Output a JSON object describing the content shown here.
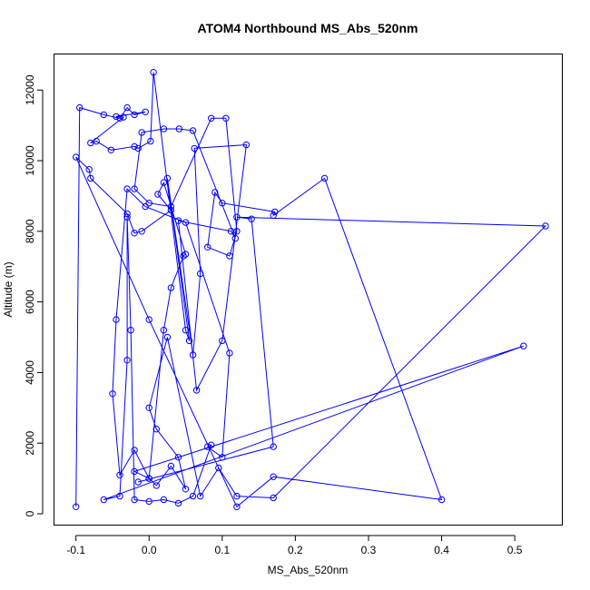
{
  "chart_data": {
    "type": "line",
    "title": "ATOM4 Northbound MS_Abs_520nm",
    "xlabel": "MS_Abs_520nm",
    "ylabel": "Altitude (m)",
    "xlim": [
      -0.13,
      0.565
    ],
    "ylim": [
      -320,
      13020
    ],
    "xticks": [
      -0.1,
      0.0,
      0.1,
      0.2,
      0.3,
      0.4,
      0.5
    ],
    "xtick_labels": [
      "-0.1",
      "0.0",
      "0.1",
      "0.2",
      "0.3",
      "0.4",
      "0.5"
    ],
    "yticks": [
      0,
      2000,
      4000,
      6000,
      8000,
      10000,
      12000
    ],
    "ytick_labels": [
      "0",
      "2000",
      "4000",
      "6000",
      "8000",
      "10000",
      "12000"
    ],
    "grid": false,
    "series": [
      {
        "color": "#0000ff",
        "marker": "open-circle",
        "points": [
          [
            -0.1,
            200
          ],
          [
            -0.095,
            11500
          ],
          [
            -0.062,
            11300
          ],
          [
            -0.04,
            11200
          ],
          [
            -0.03,
            11500
          ],
          [
            -0.02,
            11300
          ],
          [
            -0.005,
            11380
          ],
          [
            -0.045,
            11250
          ],
          [
            -0.035,
            11230
          ],
          [
            -0.08,
            10500
          ],
          [
            -0.072,
            10550
          ],
          [
            -0.052,
            10300
          ],
          [
            -0.02,
            10400
          ],
          [
            -0.015,
            10350
          ],
          [
            0.002,
            10550
          ],
          [
            0.006,
            12500
          ],
          [
            0.05,
            5200
          ],
          [
            0.055,
            4900
          ],
          [
            0.025,
            9500
          ],
          [
            0.06,
            4500
          ],
          [
            0.07,
            6800
          ],
          [
            0.062,
            10350
          ],
          [
            0.133,
            10450
          ],
          [
            0.1,
            4900
          ],
          [
            0.065,
            3500
          ],
          [
            0.04,
            8300
          ],
          [
            0.112,
            8000
          ],
          [
            0.118,
            7800
          ],
          [
            0.06,
            10850
          ],
          [
            0.041,
            10900
          ],
          [
            0.02,
            10900
          ],
          [
            -0.01,
            10800
          ],
          [
            -0.02,
            9200
          ],
          [
            0.0,
            8800
          ],
          [
            0.03,
            8700
          ],
          [
            0.085,
            11200
          ],
          [
            0.105,
            11200
          ],
          [
            0.12,
            8000
          ],
          [
            0.11,
            7300
          ],
          [
            0.08,
            7550
          ],
          [
            0.09,
            9100
          ],
          [
            0.1,
            8800
          ],
          [
            0.172,
            8550
          ],
          [
            0.17,
            8450
          ],
          [
            0.24,
            9500
          ],
          [
            0.4,
            400
          ],
          [
            0.17,
            1050
          ],
          [
            0.12,
            200
          ],
          [
            0.0,
            5500
          ],
          [
            -0.1,
            10100
          ],
          [
            -0.082,
            9750
          ],
          [
            -0.08,
            9500
          ],
          [
            -0.03,
            8500
          ],
          [
            -0.02,
            7950
          ],
          [
            -0.01,
            8000
          ],
          [
            0.03,
            8600
          ],
          [
            0.012,
            9050
          ],
          [
            0.02,
            9380
          ],
          [
            0.05,
            7350
          ],
          [
            0.047,
            7300
          ],
          [
            0.03,
            6400
          ],
          [
            0.02,
            5200
          ],
          [
            0.0,
            1000
          ],
          [
            -0.02,
            1800
          ],
          [
            -0.04,
            1100
          ],
          [
            -0.05,
            3400
          ],
          [
            -0.045,
            5500
          ],
          [
            -0.03,
            9200
          ],
          [
            -0.005,
            8700
          ],
          [
            0.05,
            8250
          ],
          [
            0.11,
            4550
          ],
          [
            0.1,
            1600
          ],
          [
            0.08,
            1900
          ],
          [
            0.085,
            1950
          ],
          [
            0.06,
            500
          ],
          [
            0.04,
            300
          ],
          [
            0.02,
            400
          ],
          [
            0.0,
            350
          ],
          [
            -0.02,
            400
          ],
          [
            -0.025,
            5200
          ],
          [
            -0.03,
            8400
          ],
          [
            -0.03,
            4350
          ],
          [
            -0.04,
            500
          ],
          [
            -0.062,
            400
          ],
          [
            0.512,
            4750
          ],
          [
            -0.02,
            1200
          ],
          [
            0.0,
            1000
          ],
          [
            0.01,
            800
          ],
          [
            0.03,
            1350
          ],
          [
            0.05,
            700
          ],
          [
            0.04,
            1600
          ],
          [
            0.01,
            2400
          ],
          [
            0.0,
            3000
          ],
          [
            0.025,
            5000
          ],
          [
            0.07,
            500
          ],
          [
            0.095,
            1300
          ],
          [
            0.12,
            500
          ],
          [
            0.17,
            450
          ],
          [
            0.542,
            8150
          ],
          [
            0.12,
            8400
          ],
          [
            0.14,
            8350
          ],
          [
            0.17,
            1900
          ],
          [
            -0.015,
            900
          ]
        ]
      }
    ]
  }
}
